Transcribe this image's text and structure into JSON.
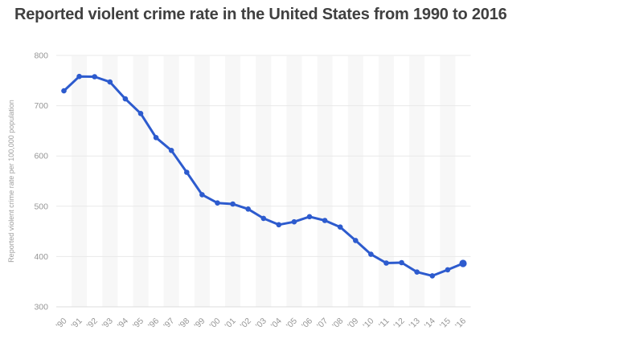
{
  "header": {
    "title": "Reported violent crime rate in the United States from 1990 to 2016"
  },
  "chart_data": {
    "type": "line",
    "title": "Reported violent crime rate in the United States from 1990 to 2016",
    "categories": [
      "'90",
      "'91",
      "'92",
      "'93",
      "'94",
      "'95",
      "'96",
      "'97",
      "'98",
      "'99",
      "'00",
      "'01",
      "'02",
      "'03",
      "'04",
      "'05",
      "'06",
      "'07",
      "'08",
      "'09",
      "'10",
      "'11",
      "'12",
      "'13",
      "'14",
      "'15",
      "'16"
    ],
    "values": [
      729.6,
      758.2,
      757.7,
      747.1,
      713.6,
      684.5,
      636.6,
      611.0,
      567.6,
      523.0,
      506.5,
      504.5,
      494.4,
      475.8,
      463.2,
      469.0,
      479.3,
      471.8,
      458.6,
      431.9,
      404.5,
      387.1,
      387.8,
      369.1,
      361.6,
      373.7,
      386.3
    ],
    "xlabel": "",
    "ylabel": "Reported violent crime rate per 100,000 population",
    "ylim": [
      300,
      800
    ],
    "yticks": [
      300,
      400,
      500,
      600,
      700,
      800
    ],
    "grid": "horizontal",
    "legend": "none",
    "background_stripes": "alternating vertical bands on odd year columns",
    "colors": {
      "line": "#2d5bce",
      "marker": "#2d5bce",
      "grid": "#e9e9e9",
      "axis_line": "#dcdcdc",
      "stripe": "#f7f7f7",
      "tick_text": "#969696",
      "axis_label_text": "#9e9e9e",
      "title_text": "#404040",
      "background": "#ffffff"
    }
  }
}
